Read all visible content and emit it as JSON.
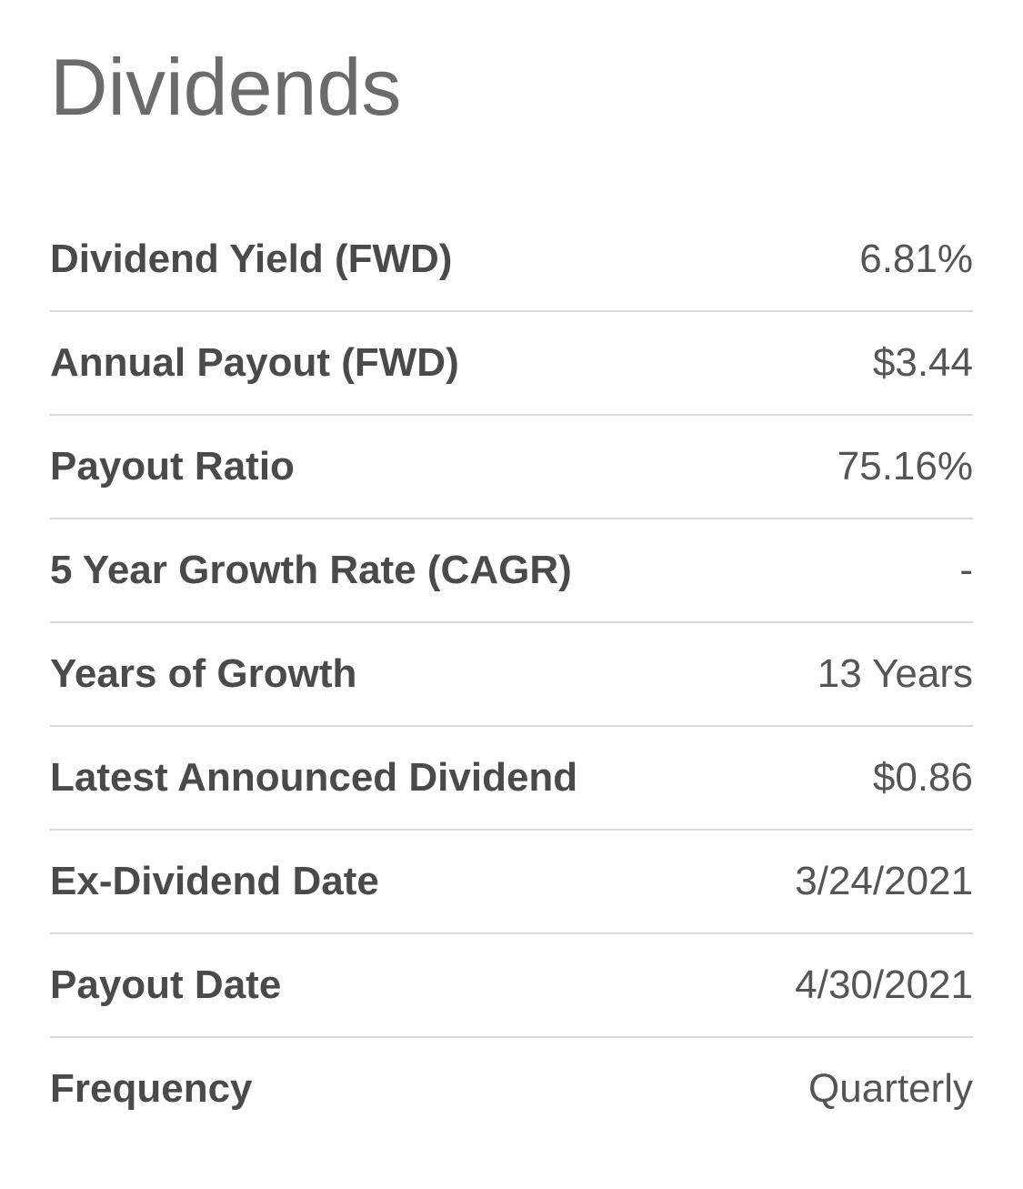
{
  "title": "Dividends",
  "rows": [
    {
      "label": "Dividend Yield (FWD)",
      "value": "6.81%"
    },
    {
      "label": "Annual Payout (FWD)",
      "value": "$3.44"
    },
    {
      "label": "Payout Ratio",
      "value": "75.16%"
    },
    {
      "label": "5 Year Growth Rate (CAGR)",
      "value": "-"
    },
    {
      "label": "Years of Growth",
      "value": "13 Years"
    },
    {
      "label": "Latest Announced Dividend",
      "value": "$0.86"
    },
    {
      "label": "Ex-Dividend Date",
      "value": "3/24/2021"
    },
    {
      "label": "Payout Date",
      "value": "4/30/2021"
    },
    {
      "label": "Frequency",
      "value": "Quarterly"
    }
  ]
}
